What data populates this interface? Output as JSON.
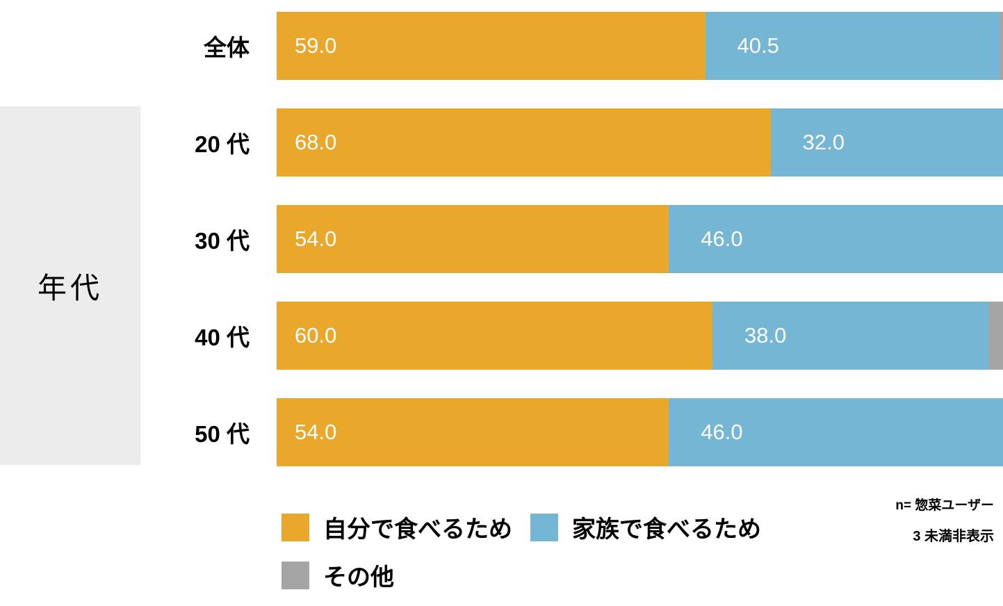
{
  "chart_data": {
    "type": "bar",
    "orientation": "horizontal",
    "stacked": true,
    "group_label": "年代",
    "categories": [
      "全体",
      "20 代",
      "30 代",
      "40 代",
      "50 代"
    ],
    "series": [
      {
        "name": "自分で食べるため",
        "color": "#E9A82C",
        "values": [
          59.0,
          68.0,
          54.0,
          60.0,
          54.0
        ]
      },
      {
        "name": "家族で食べるため",
        "color": "#74B6D4",
        "values": [
          40.5,
          32.0,
          46.0,
          38.0,
          46.0
        ]
      },
      {
        "name": "その他",
        "color": "#A5A5A5",
        "values": [
          0.5,
          0.0,
          0.0,
          2.0,
          0.0
        ]
      }
    ],
    "xlim": [
      0,
      100
    ],
    "value_format": "one_decimal",
    "label_min_display": 3,
    "grid": false,
    "legend_position": "bottom-left"
  },
  "notes": {
    "line1": "n= 惣菜ユーザー",
    "line2": "3 未満非表示"
  },
  "colors": {
    "group_box_bg": "#ECECEC",
    "bar_value_text": "#ffffff",
    "label_text": "#000000"
  }
}
